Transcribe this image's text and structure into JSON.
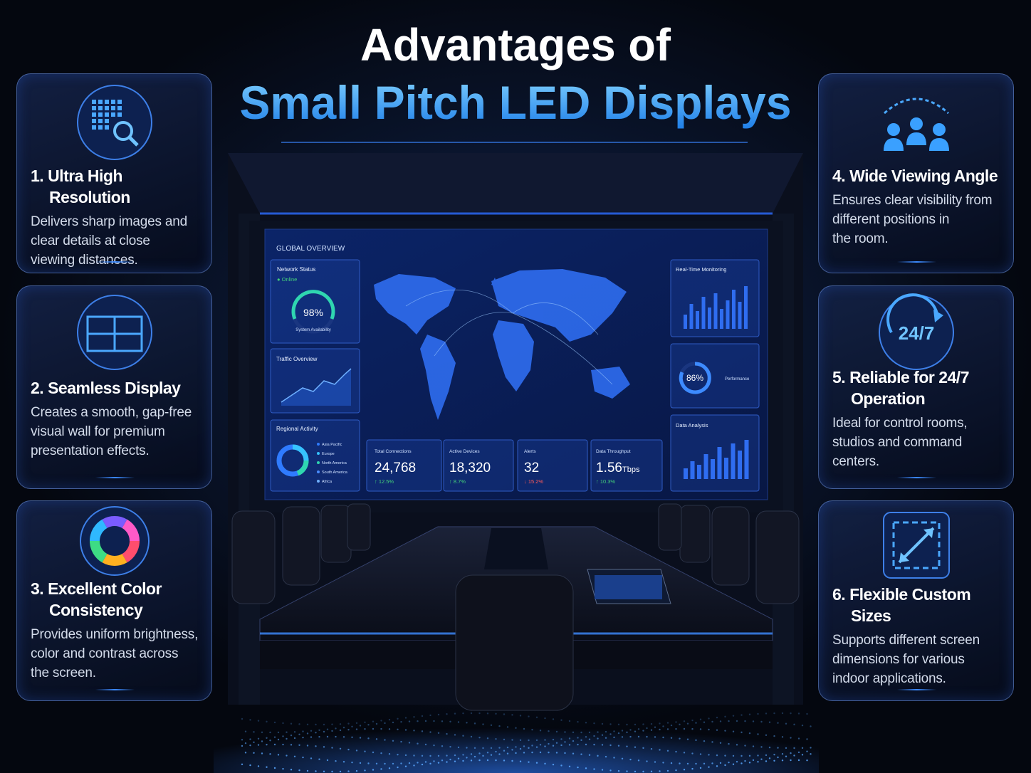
{
  "header": {
    "title_line1": "Advantages of",
    "title_line2": "Small Pitch LED Displays"
  },
  "features": [
    {
      "title": "1. Ultra High Resolution",
      "description": [
        "Delivers sharp images and",
        "clear details at close",
        "viewing distances."
      ]
    },
    {
      "title": "2. Seamless Display",
      "description": [
        "Creates a smooth, gap-free",
        "visual wall for premium",
        "presentation effects."
      ]
    },
    {
      "title": "3. Excellent Color Consistency",
      "description": [
        "Provides uniform brightness,",
        "color and contrast across",
        "the screen."
      ]
    },
    {
      "title": "4. Wide Viewing Angle",
      "description": [
        "Ensures clear visibility from",
        "different positions in",
        "the room."
      ]
    },
    {
      "title": "5. Reliable for 24/7 Operation",
      "icon_text": "24/7",
      "description": [
        "Ideal for control rooms,",
        "studios and command",
        "centers."
      ]
    },
    {
      "title": "6. Flexible Custom Sizes",
      "description": [
        "Supports different screen",
        "dimensions for various",
        "indoor applications."
      ]
    }
  ],
  "dashboard": {
    "heading": "GLOBAL OVERVIEW",
    "network": {
      "title": "Network Status",
      "status": "● Online",
      "gauge": "98%",
      "caption": "System Availability"
    },
    "traffic": {
      "title": "Traffic Overview"
    },
    "regional": {
      "title": "Regional Activity",
      "legend": [
        "Asia Pacific",
        "Europe",
        "North America",
        "South America",
        "Africa"
      ]
    },
    "monitoring": {
      "title": "Real-Time Monitoring"
    },
    "performance": {
      "gauge": "86%",
      "caption": "Performance"
    },
    "analysis": {
      "title": "Data Analysis"
    },
    "stats": [
      {
        "label": "Total Connections",
        "value": "24,768",
        "change": "↑ 12.5%"
      },
      {
        "label": "Active Devices",
        "value": "18,320",
        "change": "↑ 8.7%"
      },
      {
        "label": "Alerts",
        "value": "32",
        "change": "↓ 15.2%"
      },
      {
        "label": "Data Throughput",
        "value": "1.56",
        "unit": "Tbps",
        "change": "↑ 10.3%"
      }
    ]
  }
}
